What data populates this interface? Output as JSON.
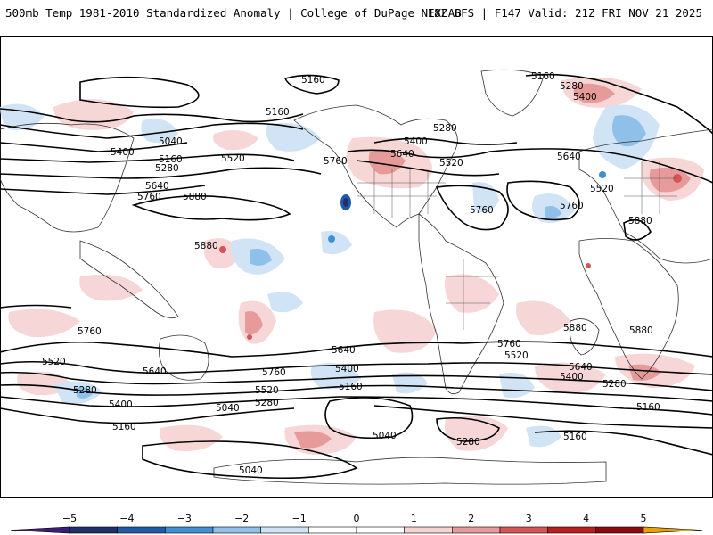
{
  "header": {
    "title": "500mb Temp 1981-2010 Standardized Anomaly | College of DuPage NEXLAB",
    "run_info": "18Z GFS | F147 Valid: 21Z FRI NOV 21 2025"
  },
  "contour_labels": [
    {
      "text": "5160"
    },
    {
      "text": "5160"
    },
    {
      "text": "5280"
    },
    {
      "text": "5400"
    },
    {
      "text": "5160"
    },
    {
      "text": "5040"
    },
    {
      "text": "5400"
    },
    {
      "text": "5160"
    },
    {
      "text": "5280"
    },
    {
      "text": "5520"
    },
    {
      "text": "5640"
    },
    {
      "text": "5760"
    },
    {
      "text": "5880"
    },
    {
      "text": "5880"
    },
    {
      "text": "5760"
    },
    {
      "text": "5640"
    },
    {
      "text": "5400"
    },
    {
      "text": "5280"
    },
    {
      "text": "5520"
    },
    {
      "text": "5760"
    },
    {
      "text": "5640"
    },
    {
      "text": "5520"
    },
    {
      "text": "5760"
    },
    {
      "text": "5880"
    },
    {
      "text": "5880"
    },
    {
      "text": "5880"
    },
    {
      "text": "5760"
    },
    {
      "text": "5520"
    },
    {
      "text": "5640"
    },
    {
      "text": "5760"
    },
    {
      "text": "5640"
    },
    {
      "text": "5400"
    },
    {
      "text": "5160"
    },
    {
      "text": "5520"
    },
    {
      "text": "5280"
    },
    {
      "text": "5400"
    },
    {
      "text": "5160"
    },
    {
      "text": "5040"
    },
    {
      "text": "5280"
    },
    {
      "text": "5040"
    },
    {
      "text": "5040"
    },
    {
      "text": "5280"
    },
    {
      "text": "5160"
    },
    {
      "text": "5760"
    },
    {
      "text": "5520"
    },
    {
      "text": "5640"
    },
    {
      "text": "5400"
    },
    {
      "text": "5280"
    },
    {
      "text": "5160"
    }
  ],
  "colorbar": {
    "ticks": [
      "−5",
      "−4",
      "−3",
      "−2",
      "−1",
      "0",
      "1",
      "2",
      "3",
      "4",
      "5"
    ],
    "colors": [
      "#3b1e7a",
      "#20306e",
      "#1f5aa8",
      "#3f8fd6",
      "#8fc0ea",
      "#cfe3f5",
      "#ffffff",
      "#ffffff",
      "#f6d2d2",
      "#e79a9a",
      "#d65656",
      "#bb1e1e",
      "#8c0a0a",
      "#e8a10c"
    ]
  },
  "legend": {
    "units": "standardized anomaly",
    "min": -5,
    "max": 5
  }
}
